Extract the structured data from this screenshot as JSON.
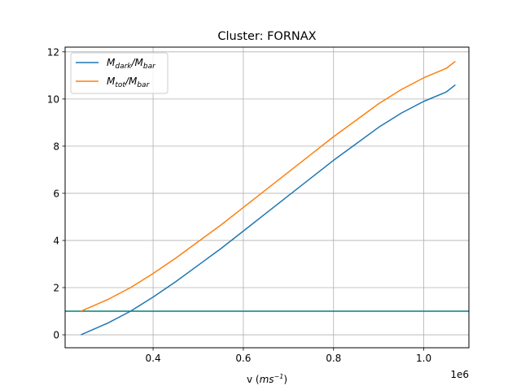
{
  "chart_data": {
    "type": "line",
    "title": "Cluster: FORNAX",
    "xlabel": "v (ms⁻¹)",
    "xlabel_base": "v (",
    "xlabel_unit": "ms",
    "xlabel_exp": "−1",
    "xlabel_close": ")",
    "ylabel": "",
    "x_offset_label": "1e6",
    "xlim": [
      0.205,
      1.1
    ],
    "ylim": [
      -0.55,
      12.2
    ],
    "xticks": [
      0.4,
      0.6,
      0.8,
      1.0
    ],
    "xtick_labels": [
      "0.4",
      "0.6",
      "0.8",
      "1.0"
    ],
    "yticks": [
      0,
      2,
      4,
      6,
      8,
      10,
      12
    ],
    "ytick_labels": [
      "0",
      "2",
      "4",
      "6",
      "8",
      "10",
      "12"
    ],
    "grid": true,
    "legend_position": "upper-left",
    "hline": {
      "y": 1.0,
      "color": "#008080"
    },
    "series": [
      {
        "name": "M_dark/M_bar",
        "name_main": "M",
        "name_sub1": "dark",
        "name_mid": "/M",
        "name_sub2": "bar",
        "color": "#1f77b4",
        "x": [
          0.24,
          0.3,
          0.35,
          0.4,
          0.45,
          0.5,
          0.55,
          0.6,
          0.65,
          0.7,
          0.75,
          0.8,
          0.85,
          0.9,
          0.95,
          1.0,
          1.05,
          1.07
        ],
        "y": [
          0.0,
          0.5,
          1.0,
          1.6,
          2.25,
          2.95,
          3.65,
          4.4,
          5.15,
          5.9,
          6.65,
          7.4,
          8.1,
          8.8,
          9.4,
          9.9,
          10.3,
          10.6
        ]
      },
      {
        "name": "M_tot/M_bar",
        "name_main": "M",
        "name_sub1": "tot",
        "name_mid": "/M",
        "name_sub2": "bar",
        "color": "#ff7f0e",
        "x": [
          0.24,
          0.3,
          0.35,
          0.4,
          0.45,
          0.5,
          0.55,
          0.6,
          0.65,
          0.7,
          0.75,
          0.8,
          0.85,
          0.9,
          0.95,
          1.0,
          1.05,
          1.07
        ],
        "y": [
          1.0,
          1.5,
          2.0,
          2.6,
          3.25,
          3.95,
          4.65,
          5.4,
          6.15,
          6.9,
          7.65,
          8.4,
          9.1,
          9.8,
          10.4,
          10.9,
          11.3,
          11.6
        ]
      }
    ]
  }
}
